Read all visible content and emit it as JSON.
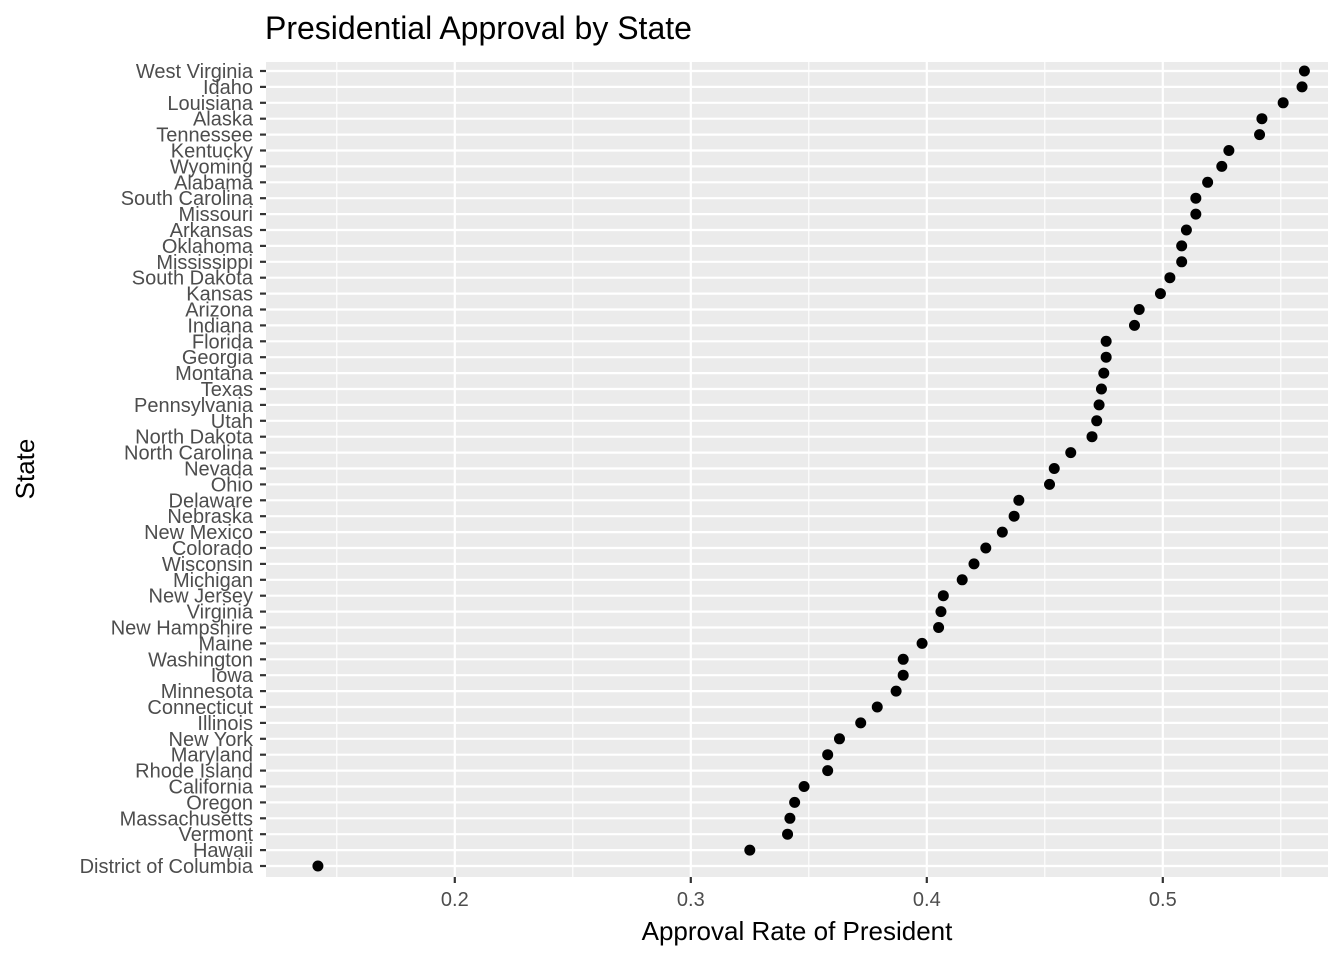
{
  "chart_data": {
    "type": "scatter",
    "title": "Presidential Approval by State",
    "xlabel": "Approval Rate of President",
    "ylabel": "State",
    "xlim": [
      0.12,
      0.57
    ],
    "xticks": [
      0.2,
      0.3,
      0.4,
      0.5
    ],
    "xtick_labels": [
      "0.2",
      "0.3",
      "0.4",
      "0.5"
    ],
    "grid": true,
    "points": [
      {
        "state": "West Virginia",
        "value": 0.56
      },
      {
        "state": "Idaho",
        "value": 0.559
      },
      {
        "state": "Louisiana",
        "value": 0.551
      },
      {
        "state": "Alaska",
        "value": 0.542
      },
      {
        "state": "Tennessee",
        "value": 0.541
      },
      {
        "state": "Kentucky",
        "value": 0.528
      },
      {
        "state": "Wyoming",
        "value": 0.525
      },
      {
        "state": "Alabama",
        "value": 0.519
      },
      {
        "state": "South Carolina",
        "value": 0.514
      },
      {
        "state": "Missouri",
        "value": 0.514
      },
      {
        "state": "Arkansas",
        "value": 0.51
      },
      {
        "state": "Oklahoma",
        "value": 0.508
      },
      {
        "state": "Mississippi",
        "value": 0.508
      },
      {
        "state": "South Dakota",
        "value": 0.503
      },
      {
        "state": "Kansas",
        "value": 0.499
      },
      {
        "state": "Arizona",
        "value": 0.49
      },
      {
        "state": "Indiana",
        "value": 0.488
      },
      {
        "state": "Florida",
        "value": 0.476
      },
      {
        "state": "Georgia",
        "value": 0.476
      },
      {
        "state": "Montana",
        "value": 0.475
      },
      {
        "state": "Texas",
        "value": 0.474
      },
      {
        "state": "Pennsylvania",
        "value": 0.473
      },
      {
        "state": "Utah",
        "value": 0.472
      },
      {
        "state": "North Dakota",
        "value": 0.47
      },
      {
        "state": "North Carolina",
        "value": 0.461
      },
      {
        "state": "Nevada",
        "value": 0.454
      },
      {
        "state": "Ohio",
        "value": 0.452
      },
      {
        "state": "Delaware",
        "value": 0.439
      },
      {
        "state": "Nebraska",
        "value": 0.437
      },
      {
        "state": "New Mexico",
        "value": 0.432
      },
      {
        "state": "Colorado",
        "value": 0.425
      },
      {
        "state": "Wisconsin",
        "value": 0.42
      },
      {
        "state": "Michigan",
        "value": 0.415
      },
      {
        "state": "New Jersey",
        "value": 0.407
      },
      {
        "state": "Virginia",
        "value": 0.406
      },
      {
        "state": "New Hampshire",
        "value": 0.405
      },
      {
        "state": "Maine",
        "value": 0.398
      },
      {
        "state": "Washington",
        "value": 0.39
      },
      {
        "state": "Iowa",
        "value": 0.39
      },
      {
        "state": "Minnesota",
        "value": 0.387
      },
      {
        "state": "Connecticut",
        "value": 0.379
      },
      {
        "state": "Illinois",
        "value": 0.372
      },
      {
        "state": "New York",
        "value": 0.363
      },
      {
        "state": "Maryland",
        "value": 0.358
      },
      {
        "state": "Rhode Island",
        "value": 0.358
      },
      {
        "state": "California",
        "value": 0.348
      },
      {
        "state": "Oregon",
        "value": 0.344
      },
      {
        "state": "Massachusetts",
        "value": 0.342
      },
      {
        "state": "Vermont",
        "value": 0.341
      },
      {
        "state": "Hawaii",
        "value": 0.325
      },
      {
        "state": "District of Columbia",
        "value": 0.142
      }
    ]
  }
}
